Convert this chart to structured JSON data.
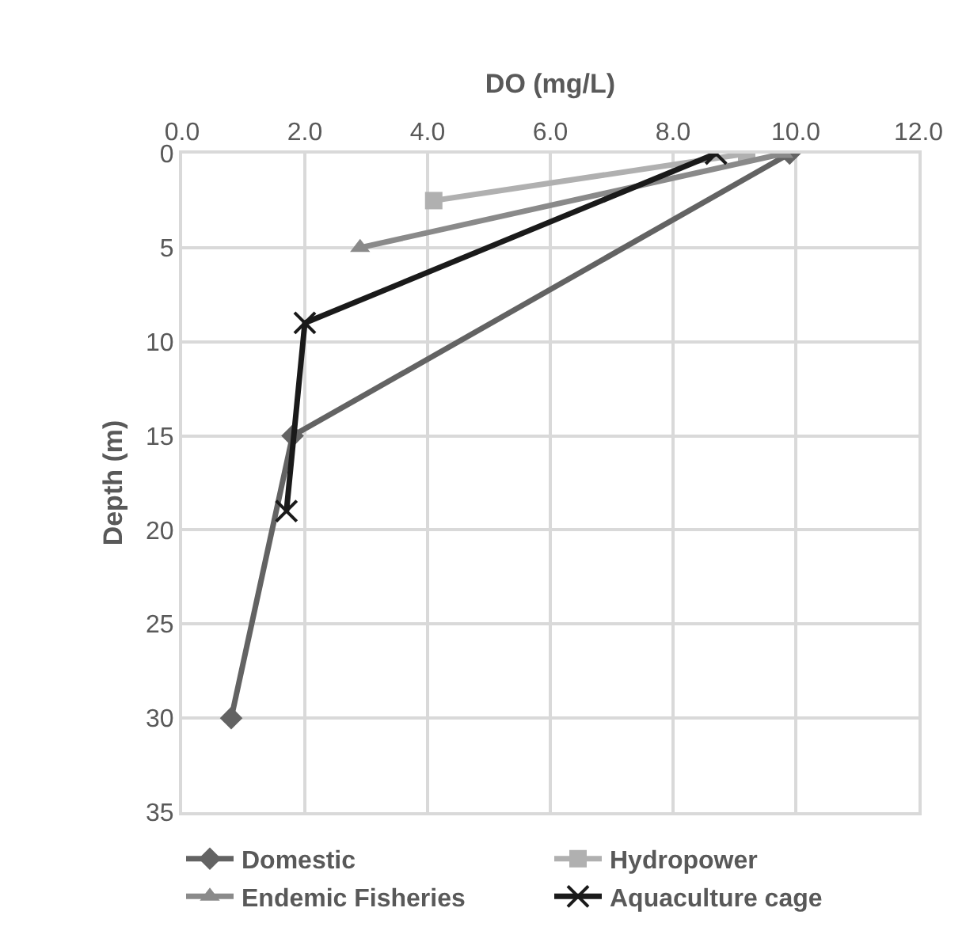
{
  "chart_data": {
    "type": "line",
    "xlabel": "DO (mg/L)",
    "ylabel": "Depth (m)",
    "xlim": [
      0,
      12
    ],
    "xticks": [
      {
        "value": 0,
        "label": "0.0"
      },
      {
        "value": 2,
        "label": "2.0"
      },
      {
        "value": 4,
        "label": "4.0"
      },
      {
        "value": 6,
        "label": "6.0"
      },
      {
        "value": 8,
        "label": "8.0"
      },
      {
        "value": 10,
        "label": "10.0"
      },
      {
        "value": 12,
        "label": "12.0"
      }
    ],
    "ylim": [
      35,
      0
    ],
    "yticks": [
      0,
      5,
      10,
      15,
      20,
      25,
      30,
      35
    ],
    "grid": true,
    "legend": "bottom",
    "series": [
      {
        "name": "Domestic",
        "color": "#636363",
        "marker": "diamond",
        "x": [
          9.9,
          1.8,
          0.8
        ],
        "values": [
          0,
          15,
          30
        ]
      },
      {
        "name": "Hydropower",
        "color": "#b0b0b0",
        "marker": "square",
        "x": [
          9.2,
          4.1
        ],
        "values": [
          0,
          2.5
        ]
      },
      {
        "name": "Endemic Fisheries",
        "color": "#8a8a8a",
        "marker": "triangle",
        "x": [
          9.8,
          2.9
        ],
        "values": [
          0,
          5
        ]
      },
      {
        "name": "Aquaculture cage",
        "color": "#1a1a1a",
        "marker": "cross",
        "x": [
          8.7,
          2.0,
          1.7
        ],
        "values": [
          0,
          9,
          19
        ]
      }
    ]
  }
}
